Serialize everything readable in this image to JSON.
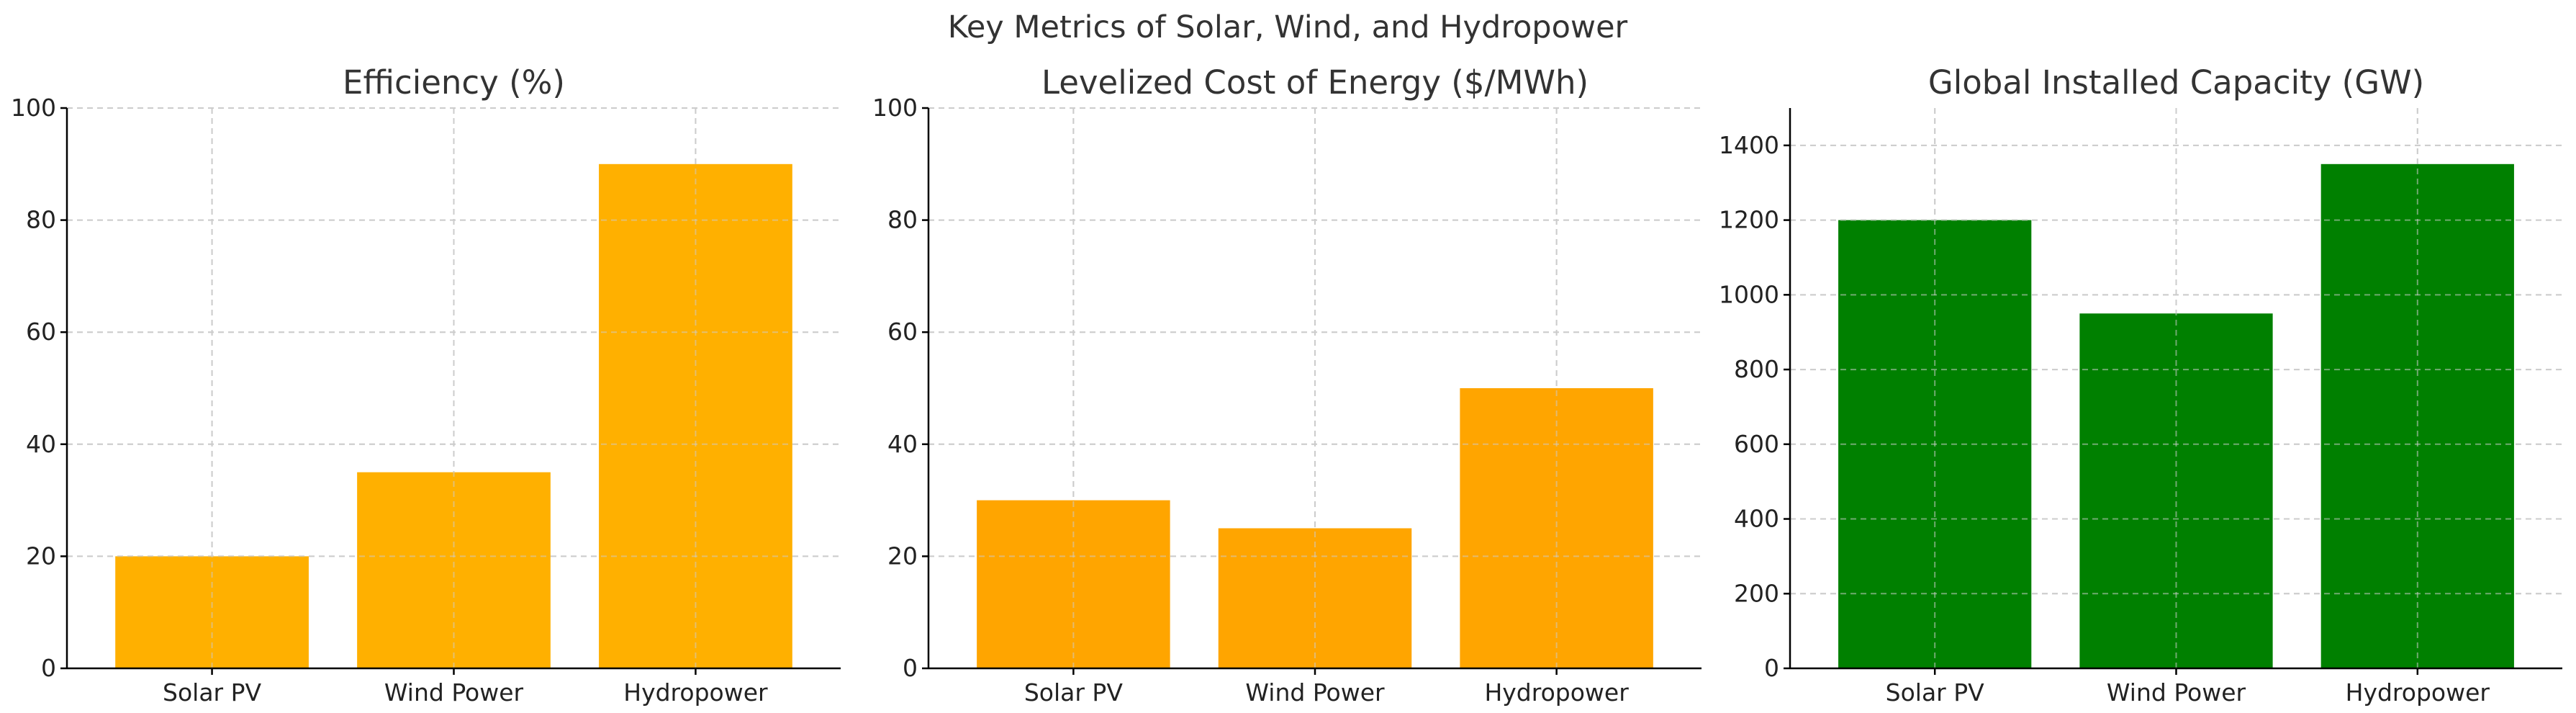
{
  "figure": {
    "suptitle": "Key Metrics of Solar, Wind, and Hydropower"
  },
  "chart_data": [
    {
      "type": "bar",
      "title": "Efficiency (%)",
      "categories": [
        "Solar PV",
        "Wind Power",
        "Hydropower"
      ],
      "values": [
        20,
        35,
        90
      ],
      "xlabel": "",
      "ylabel": "",
      "ylim": [
        0,
        100
      ],
      "yticks": [
        0,
        20,
        40,
        60,
        80,
        100
      ],
      "color": "#FFB000",
      "grid": true,
      "legend": null
    },
    {
      "type": "bar",
      "title": "Levelized Cost of Energy ($/MWh)",
      "categories": [
        "Solar PV",
        "Wind Power",
        "Hydropower"
      ],
      "values": [
        30,
        25,
        50
      ],
      "xlabel": "",
      "ylabel": "",
      "ylim": [
        0,
        100
      ],
      "yticks": [
        0,
        20,
        40,
        60,
        80,
        100
      ],
      "color": "#FFA500",
      "grid": true,
      "legend": null
    },
    {
      "type": "bar",
      "title": "Global Installed Capacity (GW)",
      "categories": [
        "Solar PV",
        "Wind Power",
        "Hydropower"
      ],
      "values": [
        1200,
        950,
        1350
      ],
      "xlabel": "",
      "ylabel": "",
      "ylim": [
        0,
        1500
      ],
      "yticks": [
        0,
        200,
        400,
        600,
        800,
        1000,
        1200,
        1400
      ],
      "color": "#008000",
      "grid": true,
      "legend": null
    }
  ]
}
